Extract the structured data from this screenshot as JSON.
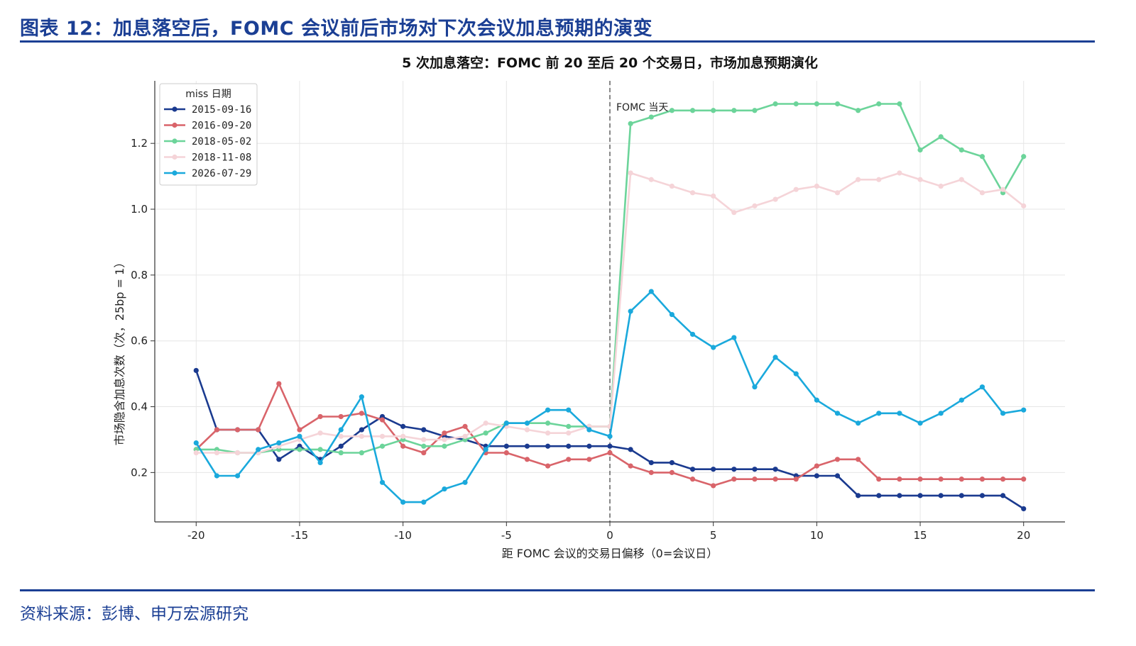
{
  "figure": {
    "title": "图表 12：加息落空后，FOMC 会议前后市场对下次会议加息预期的演变",
    "source": "资料来源：彭博、申万宏源研究",
    "brand_color": "#1b3f94"
  },
  "chart_data": {
    "type": "line",
    "title": "5 次加息落空：FOMC 前 20 至后 20 个交易日，市场加息预期演化",
    "xlabel": "距 FOMC 会议的交易日偏移（0=会议日）",
    "ylabel": "市场隐含加息次数（次，25bp = 1）",
    "xlim": [
      -22,
      22
    ],
    "ylim": [
      0.05,
      1.39
    ],
    "xticks": [
      -20,
      -15,
      -10,
      -5,
      0,
      5,
      10,
      15,
      20
    ],
    "yticks": [
      0.2,
      0.4,
      0.6,
      0.8,
      1.0,
      1.2
    ],
    "ytick_labels": [
      "0.2",
      "0.4",
      "0.6",
      "0.8",
      "1.0",
      "1.2"
    ],
    "grid": true,
    "legend_title": "miss 日期",
    "legend_position": "upper-left",
    "vline": {
      "x": 0,
      "label": "FOMC 当天"
    },
    "x": [
      -20,
      -19,
      -18,
      -17,
      -16,
      -15,
      -14,
      -13,
      -12,
      -11,
      -10,
      -9,
      -8,
      -7,
      -6,
      -5,
      -4,
      -3,
      -2,
      -1,
      0,
      1,
      2,
      3,
      4,
      5,
      6,
      7,
      8,
      9,
      10,
      11,
      12,
      13,
      14,
      15,
      16,
      17,
      18,
      19,
      20
    ],
    "series": [
      {
        "name": "2015-09-16",
        "color": "#1a3a8f",
        "values": [
          0.51,
          0.33,
          0.33,
          0.33,
          0.24,
          0.28,
          0.24,
          0.28,
          0.33,
          0.37,
          0.34,
          0.33,
          0.31,
          0.3,
          0.28,
          0.28,
          0.28,
          0.28,
          0.28,
          0.28,
          0.28,
          0.27,
          0.23,
          0.23,
          0.21,
          0.21,
          0.21,
          0.21,
          0.21,
          0.19,
          0.19,
          0.19,
          0.13,
          0.13,
          0.13,
          0.13,
          0.13,
          0.13,
          0.13,
          0.13,
          0.09
        ]
      },
      {
        "name": "2016-09-20",
        "color": "#d9646a",
        "values": [
          0.27,
          0.33,
          0.33,
          0.33,
          0.47,
          0.33,
          0.37,
          0.37,
          0.38,
          0.36,
          0.28,
          0.26,
          0.32,
          0.34,
          0.26,
          0.26,
          0.24,
          0.22,
          0.24,
          0.24,
          0.26,
          0.22,
          0.2,
          0.2,
          0.18,
          0.16,
          0.18,
          0.18,
          0.18,
          0.18,
          0.22,
          0.24,
          0.24,
          0.18,
          0.18,
          0.18,
          0.18,
          0.18,
          0.18,
          0.18,
          0.18
        ]
      },
      {
        "name": "2018-05-02",
        "color": "#6cd49a",
        "values": [
          0.27,
          0.27,
          0.26,
          0.26,
          0.27,
          0.27,
          0.27,
          0.26,
          0.26,
          0.28,
          0.3,
          0.28,
          0.28,
          0.3,
          0.32,
          0.35,
          0.35,
          0.35,
          0.34,
          0.34,
          0.34,
          1.26,
          1.28,
          1.3,
          1.3,
          1.3,
          1.3,
          1.3,
          1.32,
          1.32,
          1.32,
          1.32,
          1.3,
          1.32,
          1.32,
          1.18,
          1.22,
          1.18,
          1.16,
          1.05,
          1.16
        ]
      },
      {
        "name": "2018-11-08",
        "color": "#f5d4d8",
        "values": [
          0.26,
          0.26,
          0.26,
          0.26,
          0.28,
          0.3,
          0.32,
          0.31,
          0.31,
          0.31,
          0.31,
          0.3,
          0.3,
          0.31,
          0.35,
          0.34,
          0.33,
          0.32,
          0.32,
          0.34,
          0.34,
          1.11,
          1.09,
          1.07,
          1.05,
          1.04,
          0.99,
          1.01,
          1.03,
          1.06,
          1.07,
          1.05,
          1.09,
          1.09,
          1.11,
          1.09,
          1.07,
          1.09,
          1.05,
          1.06,
          1.01
        ]
      },
      {
        "name": "2026-07-29",
        "color": "#1aa9dc",
        "values": [
          0.29,
          0.19,
          0.19,
          0.27,
          0.29,
          0.31,
          0.23,
          0.33,
          0.43,
          0.17,
          0.11,
          0.11,
          0.15,
          0.17,
          0.27,
          0.35,
          0.35,
          0.39,
          0.39,
          0.33,
          0.31,
          0.69,
          0.75,
          0.68,
          0.62,
          0.58,
          0.61,
          0.46,
          0.55,
          0.5,
          0.42,
          0.38,
          0.35,
          0.38,
          0.38,
          0.35,
          0.38,
          0.42,
          0.46,
          0.38,
          0.39
        ]
      }
    ]
  }
}
